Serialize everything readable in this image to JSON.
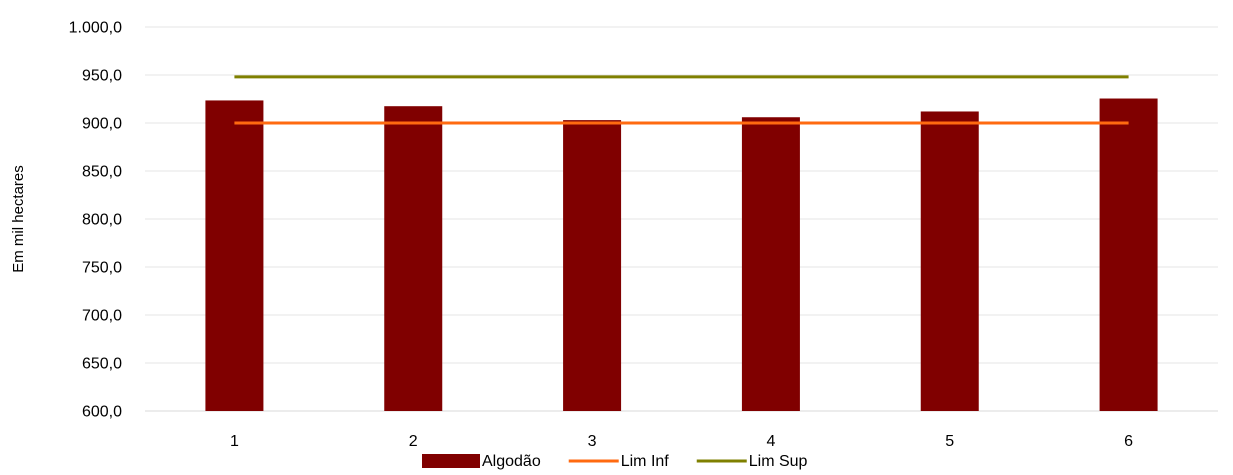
{
  "chart_data": {
    "type": "bar",
    "categories": [
      "1",
      "2",
      "3",
      "4",
      "5",
      "6"
    ],
    "series": [
      {
        "name": "Algodão",
        "type": "bar",
        "values": [
          923.5,
          917.5,
          903.0,
          906.0,
          912.0,
          925.5
        ],
        "color": "#800000"
      },
      {
        "name": "Lim Inf",
        "type": "line",
        "values": [
          900.0,
          900.0,
          900.0,
          900.0,
          900.0,
          900.0
        ],
        "color": "#FF6A10"
      },
      {
        "name": "Lim Sup",
        "type": "line",
        "values": [
          948.0,
          948.0,
          948.0,
          948.0,
          948.0,
          948.0
        ],
        "color": "#7F8000"
      }
    ],
    "ylabel": "Em mil hectares",
    "ylim": [
      600,
      1000
    ],
    "yticks": [
      "600,0",
      "650,0",
      "700,0",
      "750,0",
      "800,0",
      "850,0",
      "900,0",
      "950,0",
      "1.000,0"
    ],
    "ytick_values": [
      600,
      650,
      700,
      750,
      800,
      850,
      900,
      950,
      1000
    ],
    "grid": true,
    "legend_position": "bottom"
  }
}
